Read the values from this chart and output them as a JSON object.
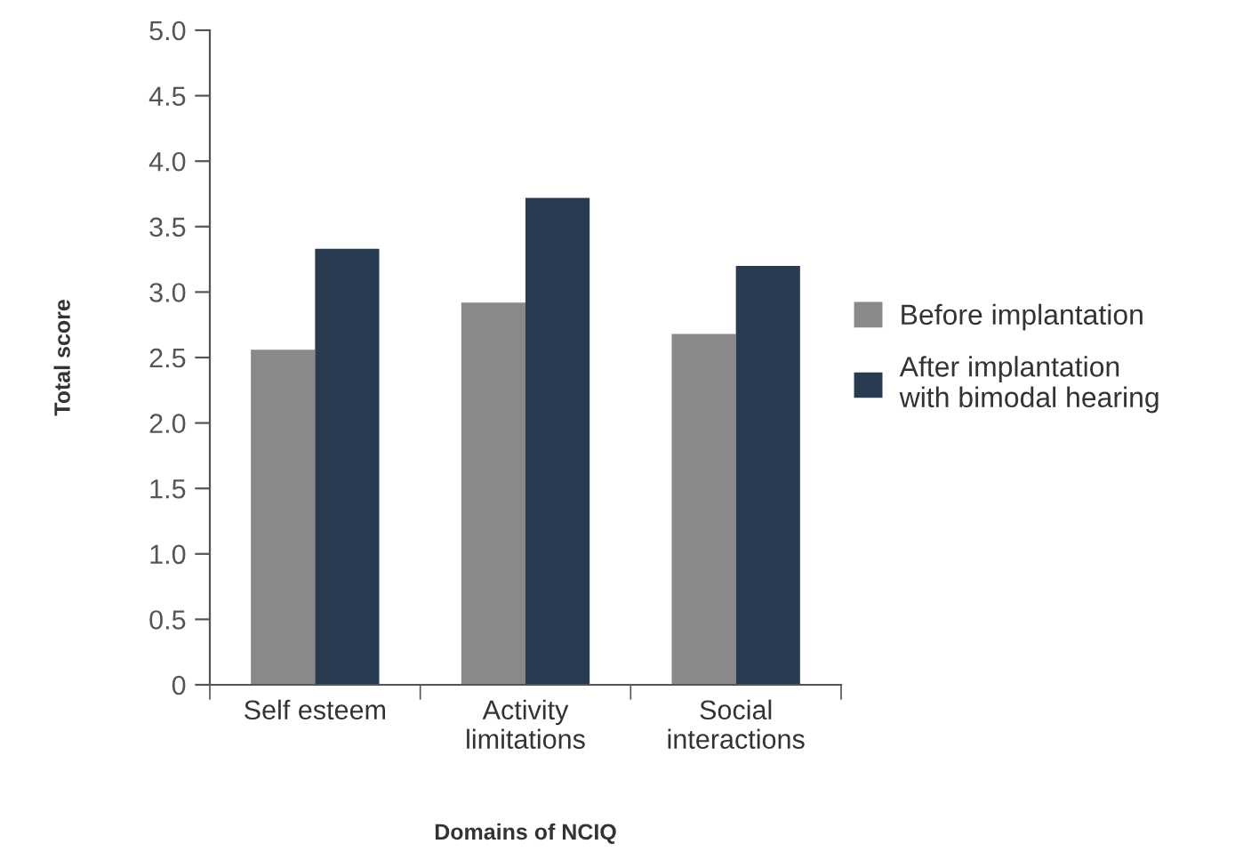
{
  "chart_data": {
    "type": "bar",
    "xlabel": "Domains of NCIQ",
    "ylabel": "Total score",
    "categories": [
      "Self esteem",
      "Activity\nlimitations",
      "Social\ninteractions"
    ],
    "series": [
      {
        "name": "Before implantation",
        "color": "#898989",
        "values": [
          2.56,
          2.92,
          2.68
        ]
      },
      {
        "name": "After implantation\nwith bimodal hearing",
        "color": "#283b50",
        "values": [
          3.33,
          3.72,
          3.2
        ]
      }
    ],
    "ylim": [
      0,
      5
    ],
    "yticks": [
      0,
      0.5,
      {
        "value": 1,
        "label": "1.0"
      },
      1.5,
      {
        "value": 2,
        "label": "2.0"
      },
      2.5,
      {
        "value": 3,
        "label": "3.0"
      },
      3.5,
      {
        "value": 4,
        "label": "4.0"
      },
      4.5,
      {
        "value": 5,
        "label": "5.0"
      }
    ],
    "grid": false,
    "legend": "right"
  }
}
